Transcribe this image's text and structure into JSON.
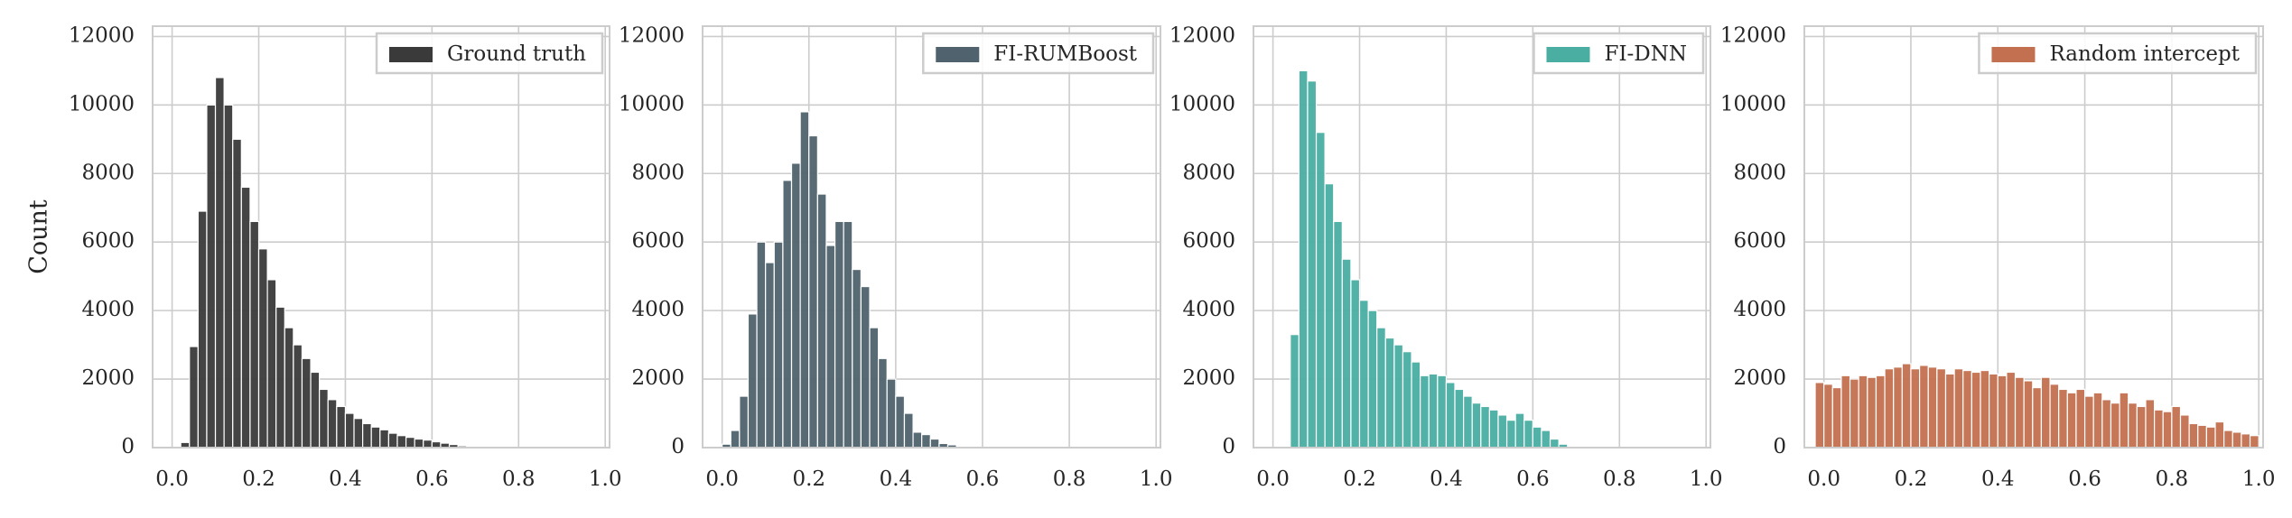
{
  "chart_data": [
    {
      "type": "histogram",
      "ylabel": "Count",
      "grid": true,
      "legend": "upper right",
      "xlim": [
        -0.045,
        1.01
      ],
      "ylim": [
        0,
        12300
      ],
      "xticks": [
        {
          "value": 0,
          "label": "0.0"
        },
        0.2,
        0.4,
        0.6,
        0.8,
        {
          "value": 1,
          "label": "1.0"
        }
      ],
      "yticks": [
        0,
        2000,
        4000,
        6000,
        8000,
        10000,
        12000
      ],
      "series": [
        {
          "name": "Ground truth",
          "color": "#3a3a3a",
          "bins": [
            0.02,
            0.04,
            0.06,
            0.08,
            0.1,
            0.12,
            0.14,
            0.16,
            0.18,
            0.2,
            0.22,
            0.24,
            0.26,
            0.28,
            0.3,
            0.32,
            0.34,
            0.36,
            0.38,
            0.4,
            0.42,
            0.44,
            0.46,
            0.48,
            0.5,
            0.52,
            0.54,
            0.56,
            0.58,
            0.6,
            0.62,
            0.64,
            0.66,
            0.68,
            0.7
          ],
          "values": [
            150,
            2950,
            6900,
            10000,
            10800,
            10000,
            9000,
            7600,
            6600,
            5800,
            4900,
            4100,
            3500,
            3000,
            2600,
            2200,
            1700,
            1400,
            1200,
            1000,
            850,
            700,
            600,
            520,
            420,
            350,
            300,
            250,
            220,
            170,
            130,
            90,
            50,
            20
          ]
        }
      ]
    },
    {
      "type": "histogram",
      "grid": true,
      "legend": "upper right",
      "xlim": [
        -0.045,
        1.01
      ],
      "ylim": [
        0,
        12300
      ],
      "xticks": [
        {
          "value": 0,
          "label": "0.0"
        },
        0.2,
        0.4,
        0.6,
        0.8,
        {
          "value": 1,
          "label": "1.0"
        }
      ],
      "yticks": [
        0,
        2000,
        4000,
        6000,
        8000,
        10000,
        12000
      ],
      "series": [
        {
          "name": "FI-RUMBoost",
          "color": "#4f626d",
          "bins": [
            0,
            0.02,
            0.04,
            0.06,
            0.08,
            0.1,
            0.12,
            0.14,
            0.16,
            0.18,
            0.2,
            0.22,
            0.24,
            0.26,
            0.28,
            0.3,
            0.32,
            0.34,
            0.36,
            0.38,
            0.4,
            0.42,
            0.44,
            0.46,
            0.48,
            0.5,
            0.52,
            0.54
          ],
          "values": [
            100,
            500,
            1500,
            3900,
            6000,
            5400,
            6000,
            7800,
            8300,
            9800,
            9100,
            7400,
            5900,
            6600,
            6600,
            5200,
            4700,
            3500,
            2600,
            2000,
            1500,
            1000,
            450,
            380,
            250,
            120,
            80
          ]
        }
      ]
    },
    {
      "type": "histogram",
      "grid": true,
      "legend": "upper right",
      "xlim": [
        -0.045,
        1.01
      ],
      "ylim": [
        0,
        12300
      ],
      "xticks": [
        {
          "value": 0,
          "label": "0.0"
        },
        0.2,
        0.4,
        0.6,
        0.8,
        {
          "value": 1,
          "label": "1.0"
        }
      ],
      "yticks": [
        0,
        2000,
        4000,
        6000,
        8000,
        10000,
        12000
      ],
      "series": [
        {
          "name": "FI-DNN",
          "color": "#4aaea2",
          "bins": [
            0.04,
            0.06,
            0.08,
            0.1,
            0.12,
            0.14,
            0.16,
            0.18,
            0.2,
            0.22,
            0.24,
            0.26,
            0.28,
            0.3,
            0.32,
            0.34,
            0.36,
            0.38,
            0.4,
            0.42,
            0.44,
            0.46,
            0.48,
            0.5,
            0.52,
            0.54,
            0.56,
            0.58,
            0.6,
            0.62,
            0.64,
            0.66,
            0.68
          ],
          "values": [
            3300,
            11000,
            10700,
            9200,
            7700,
            6600,
            5500,
            4900,
            4300,
            4000,
            3500,
            3200,
            3000,
            2800,
            2500,
            2100,
            2150,
            2100,
            1900,
            1700,
            1500,
            1300,
            1200,
            1100,
            950,
            800,
            1000,
            800,
            600,
            500,
            250,
            100
          ]
        }
      ]
    },
    {
      "type": "histogram",
      "grid": true,
      "legend": "upper right",
      "xlim": [
        -0.045,
        1.01
      ],
      "ylim": [
        0,
        12300
      ],
      "xticks": [
        {
          "value": 0,
          "label": "0.0"
        },
        0.2,
        0.4,
        0.6,
        0.8,
        {
          "value": 1,
          "label": "1.0"
        }
      ],
      "yticks": [
        0,
        2000,
        4000,
        6000,
        8000,
        10000,
        12000
      ],
      "series": [
        {
          "name": "Random intercept",
          "color": "#c2704f",
          "bins": [
            -0.02,
            0,
            0.02,
            0.04,
            0.06,
            0.08,
            0.1,
            0.12,
            0.14,
            0.16,
            0.18,
            0.2,
            0.22,
            0.24,
            0.26,
            0.28,
            0.3,
            0.32,
            0.34,
            0.36,
            0.38,
            0.4,
            0.42,
            0.44,
            0.46,
            0.48,
            0.5,
            0.52,
            0.54,
            0.56,
            0.58,
            0.6,
            0.62,
            0.64,
            0.66,
            0.68,
            0.7,
            0.72,
            0.74,
            0.76,
            0.78,
            0.8,
            0.82,
            0.84,
            0.86,
            0.88,
            0.9,
            0.92,
            0.94,
            0.96,
            0.98,
            1
          ],
          "values": [
            1900,
            1850,
            1750,
            2100,
            2000,
            2100,
            2050,
            2100,
            2300,
            2350,
            2450,
            2300,
            2400,
            2350,
            2300,
            2150,
            2300,
            2250,
            2200,
            2250,
            2150,
            2100,
            2200,
            2050,
            1950,
            1750,
            2050,
            1850,
            1700,
            1600,
            1700,
            1500,
            1600,
            1400,
            1300,
            1600,
            1300,
            1200,
            1400,
            1100,
            1050,
            1200,
            950,
            700,
            650,
            600,
            750,
            500,
            450,
            400,
            350
          ]
        }
      ]
    }
  ]
}
